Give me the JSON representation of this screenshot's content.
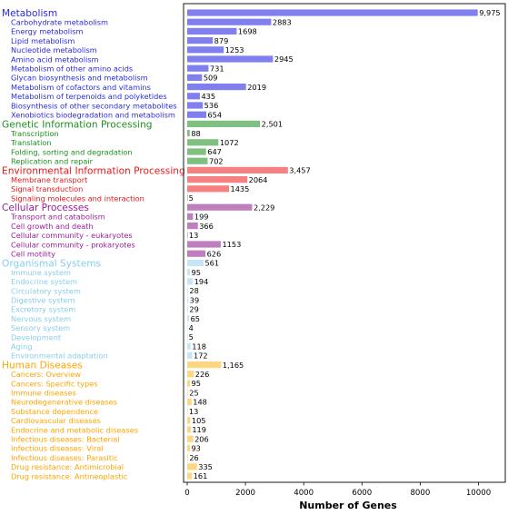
{
  "chart_data": {
    "type": "bar",
    "orientation": "horizontal",
    "xlabel": "Number of Genes",
    "xlim": [
      0,
      11000
    ],
    "xticks": [
      0,
      2000,
      4000,
      6000,
      8000,
      10000
    ],
    "xtick_labels": [
      "0",
      "2000",
      "4000",
      "6000",
      "8000",
      "10000"
    ],
    "grid": false,
    "groups": [
      {
        "name": "Metabolism",
        "color": "#2b2bdc",
        "bar_color": "#7f7ff0",
        "total": 9975,
        "total_label": "9,975",
        "items": [
          {
            "name": "Carbohydrate metabolism",
            "value": 2883
          },
          {
            "name": "Energy metabolism",
            "value": 1698
          },
          {
            "name": "Lipid metabolism",
            "value": 879
          },
          {
            "name": "Nucleotide metabolism",
            "value": 1253
          },
          {
            "name": "Amino acid metabolism",
            "value": 2945
          },
          {
            "name": "Metabolism of other amino acids",
            "value": 731
          },
          {
            "name": "Glycan biosynthesis and metabolism",
            "value": 509
          },
          {
            "name": "Metabolism of cofactors and vitamins",
            "value": 2019
          },
          {
            "name": "Metabolism of terpenoids and polyketides",
            "value": 435
          },
          {
            "name": "Biosynthesis of other secondary metabolites",
            "value": 536
          },
          {
            "name": "Xenobiotics biodegradation and metabolism",
            "value": 654
          }
        ]
      },
      {
        "name": "Genetic Information Processing",
        "color": "#1f8f1f",
        "bar_color": "#7fbf7f",
        "total": 2501,
        "total_label": "2,501",
        "items": [
          {
            "name": "Transcription",
            "value": 88
          },
          {
            "name": "Translation",
            "value": 1072
          },
          {
            "name": "Folding, sorting and degradation",
            "value": 647
          },
          {
            "name": "Replication and repair",
            "value": 702
          }
        ]
      },
      {
        "name": "Environmental Information Processing",
        "color": "#e81818",
        "bar_color": "#f78080",
        "total": 3457,
        "total_label": "3,457",
        "items": [
          {
            "name": "Membrane transport",
            "value": 2064
          },
          {
            "name": "Signal transduction",
            "value": 1435
          },
          {
            "name": "Signaling molecules and interaction",
            "value": 5
          }
        ]
      },
      {
        "name": "Cellular Processes",
        "color": "#9a1f9a",
        "bar_color": "#bf7fbf",
        "total": 2229,
        "total_label": "2,229",
        "items": [
          {
            "name": "Transport and catabolism",
            "value": 199
          },
          {
            "name": "Cell growth and death",
            "value": 366
          },
          {
            "name": "Cellular community - eukaryotes",
            "value": 13
          },
          {
            "name": "Cellular community - prokaryotes",
            "value": 1153
          },
          {
            "name": "Cell motility",
            "value": 626
          }
        ]
      },
      {
        "name": "Organismal Systems",
        "color": "#87ceeb",
        "bar_color": "#c5e6f5",
        "total": 561,
        "total_label": "561",
        "items": [
          {
            "name": "Immune system",
            "value": 95
          },
          {
            "name": "Endocrine system",
            "value": 194
          },
          {
            "name": "Circulatory system",
            "value": 28
          },
          {
            "name": "Digestive system",
            "value": 39
          },
          {
            "name": "Excretory system",
            "value": 29
          },
          {
            "name": "Nervous system",
            "value": 65
          },
          {
            "name": "Sensory system",
            "value": 4
          },
          {
            "name": "Development",
            "value": 5
          },
          {
            "name": "Aging",
            "value": 118
          },
          {
            "name": "Environmental adaptation",
            "value": 172
          }
        ]
      },
      {
        "name": "Human Diseases",
        "color": "#ffa500",
        "bar_color": "#ffd580",
        "total": 1165,
        "total_label": "1,165",
        "items": [
          {
            "name": "Cancers: Overview",
            "value": 226
          },
          {
            "name": "Cancers: Specific types",
            "value": 95
          },
          {
            "name": "Immune diseases",
            "value": 25
          },
          {
            "name": "Neurodegenerative diseases",
            "value": 148
          },
          {
            "name": "Substance dependence",
            "value": 13
          },
          {
            "name": "Cardiovascular diseases",
            "value": 105
          },
          {
            "name": "Endocrine and metabolic diseases",
            "value": 119
          },
          {
            "name": "Infectious diseases: Bacterial",
            "value": 206
          },
          {
            "name": "Infectious diseases: Viral",
            "value": 93
          },
          {
            "name": "Infectious diseases: Parasitic",
            "value": 26
          },
          {
            "name": "Drug resistance: Antimicrobial",
            "value": 335
          },
          {
            "name": "Drug resistance: Antineoplastic",
            "value": 161
          }
        ]
      }
    ]
  }
}
